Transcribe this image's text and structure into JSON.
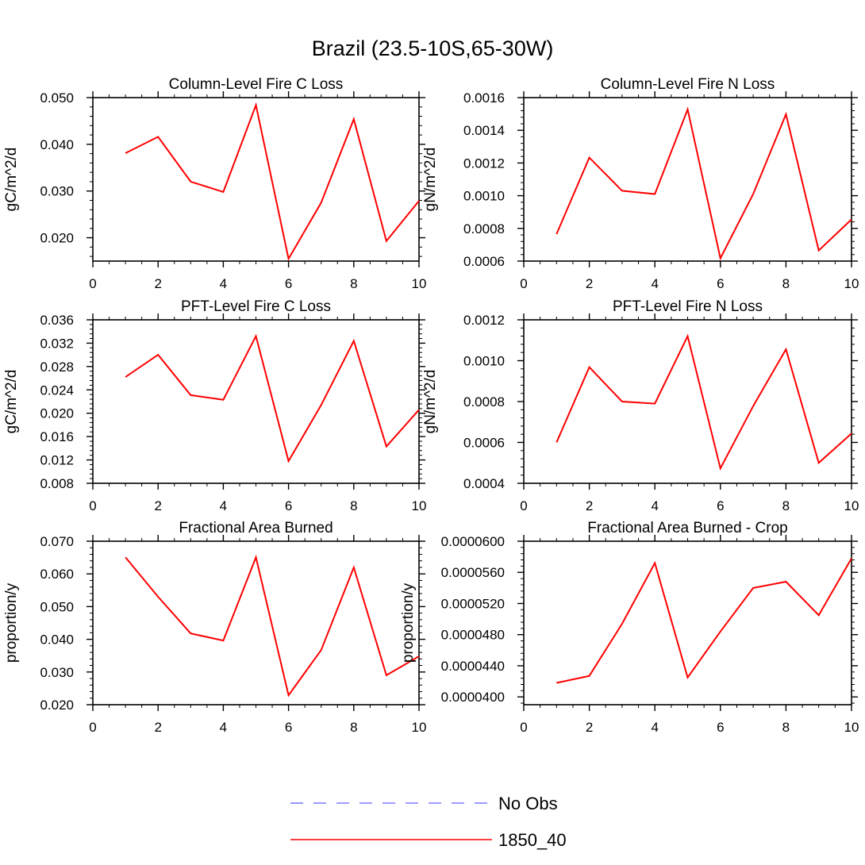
{
  "figure": {
    "title": "Brazil (23.5-10S,65-30W)",
    "line_color": "#ff0000",
    "obs_color": "#7b7bff"
  },
  "legend": {
    "items": [
      {
        "label": "No Obs",
        "style": "dashed",
        "color": "#7b7bff"
      },
      {
        "label": "1850_40",
        "style": "solid",
        "color": "#ff0000"
      }
    ]
  },
  "chart_data": [
    {
      "type": "line",
      "title": "Column-Level Fire C Loss",
      "ylabel": "gC/m^2/d",
      "xlim": [
        0,
        10
      ],
      "ylim": [
        0.015,
        0.05
      ],
      "xticks": [
        "0",
        "2",
        "4",
        "6",
        "8",
        "10"
      ],
      "yticks": [
        {
          "v": 0.02,
          "label": "0.020"
        },
        {
          "v": 0.03,
          "label": "0.030"
        },
        {
          "v": 0.04,
          "label": "0.040"
        },
        {
          "v": 0.05,
          "label": "0.050"
        }
      ],
      "series": [
        {
          "name": "1850_40",
          "x": [
            1,
            2,
            3,
            4,
            5,
            6,
            7,
            8,
            9,
            10
          ],
          "values": [
            0.0381,
            0.0416,
            0.032,
            0.0298,
            0.0484,
            0.0155,
            0.0275,
            0.0454,
            0.0193,
            0.0279
          ]
        }
      ]
    },
    {
      "type": "line",
      "title": "Column-Level Fire N Loss",
      "ylabel": "gN/m^2/d",
      "xlim": [
        0,
        10
      ],
      "ylim": [
        0.0006,
        0.0016
      ],
      "xticks": [
        "0",
        "2",
        "4",
        "6",
        "8",
        "10"
      ],
      "yticks": [
        {
          "v": 0.0006,
          "label": "0.0006"
        },
        {
          "v": 0.0008,
          "label": "0.0008"
        },
        {
          "v": 0.001,
          "label": "0.0010"
        },
        {
          "v": 0.0012,
          "label": "0.0012"
        },
        {
          "v": 0.0014,
          "label": "0.0014"
        },
        {
          "v": 0.0016,
          "label": "0.0016"
        }
      ],
      "series": [
        {
          "name": "1850_40",
          "x": [
            1,
            2,
            3,
            4,
            5,
            6,
            7,
            8,
            9,
            10
          ],
          "values": [
            0.000765,
            0.001233,
            0.00103,
            0.00101,
            0.001528,
            0.000617,
            0.00101,
            0.001498,
            0.000665,
            0.000855
          ]
        }
      ]
    },
    {
      "type": "line",
      "title": "PFT-Level Fire C Loss",
      "ylabel": "gC/m^2/d",
      "xlim": [
        0,
        10
      ],
      "ylim": [
        0.008,
        0.036
      ],
      "xticks": [
        "0",
        "2",
        "4",
        "6",
        "8",
        "10"
      ],
      "yticks": [
        {
          "v": 0.008,
          "label": "0.008"
        },
        {
          "v": 0.012,
          "label": "0.012"
        },
        {
          "v": 0.016,
          "label": "0.016"
        },
        {
          "v": 0.02,
          "label": "0.020"
        },
        {
          "v": 0.024,
          "label": "0.024"
        },
        {
          "v": 0.028,
          "label": "0.028"
        },
        {
          "v": 0.032,
          "label": "0.032"
        },
        {
          "v": 0.036,
          "label": "0.036"
        }
      ],
      "series": [
        {
          "name": "1850_40",
          "x": [
            1,
            2,
            3,
            4,
            5,
            6,
            7,
            8,
            9,
            10
          ],
          "values": [
            0.0262,
            0.03,
            0.0231,
            0.0223,
            0.0332,
            0.0118,
            0.0214,
            0.0324,
            0.0143,
            0.0206
          ]
        }
      ]
    },
    {
      "type": "line",
      "title": "PFT-Level Fire N Loss",
      "ylabel": "gN/m^2/d",
      "xlim": [
        0,
        10
      ],
      "ylim": [
        0.0004,
        0.0012
      ],
      "xticks": [
        "0",
        "2",
        "4",
        "6",
        "8",
        "10"
      ],
      "yticks": [
        {
          "v": 0.0004,
          "label": "0.0004"
        },
        {
          "v": 0.0006,
          "label": "0.0006"
        },
        {
          "v": 0.0008,
          "label": "0.0008"
        },
        {
          "v": 0.001,
          "label": "0.0010"
        },
        {
          "v": 0.0012,
          "label": "0.0012"
        }
      ],
      "series": [
        {
          "name": "1850_40",
          "x": [
            1,
            2,
            3,
            4,
            5,
            6,
            7,
            8,
            9,
            10
          ],
          "values": [
            0.0006,
            0.000968,
            0.0008,
            0.00079,
            0.00112,
            0.000473,
            0.000778,
            0.001056,
            0.0005,
            0.000644
          ]
        }
      ]
    },
    {
      "type": "line",
      "title": "Fractional Area Burned",
      "ylabel": "proportion/y",
      "xlim": [
        0,
        10
      ],
      "ylim": [
        0.02,
        0.07
      ],
      "xticks": [
        "0",
        "2",
        "4",
        "6",
        "8",
        "10"
      ],
      "yticks": [
        {
          "v": 0.02,
          "label": "0.020"
        },
        {
          "v": 0.03,
          "label": "0.030"
        },
        {
          "v": 0.04,
          "label": "0.040"
        },
        {
          "v": 0.05,
          "label": "0.050"
        },
        {
          "v": 0.06,
          "label": "0.060"
        },
        {
          "v": 0.07,
          "label": "0.070"
        }
      ],
      "series": [
        {
          "name": "1850_40",
          "x": [
            1,
            2,
            3,
            4,
            5,
            6,
            7,
            8,
            9,
            10
          ],
          "values": [
            0.0651,
            0.053,
            0.0418,
            0.0396,
            0.0651,
            0.0229,
            0.0367,
            0.062,
            0.029,
            0.0348
          ]
        }
      ]
    },
    {
      "type": "line",
      "title": "Fractional Area Burned - Crop",
      "ylabel": "proportion/y",
      "xlim": [
        0,
        10
      ],
      "ylim": [
        3.9e-05,
        6e-05
      ],
      "xticks": [
        "0",
        "2",
        "4",
        "6",
        "8",
        "10"
      ],
      "yticks": [
        {
          "v": 4e-05,
          "label": "0.0000400"
        },
        {
          "v": 4.4e-05,
          "label": "0.0000440"
        },
        {
          "v": 4.8e-05,
          "label": "0.0000480"
        },
        {
          "v": 5.2e-05,
          "label": "0.0000520"
        },
        {
          "v": 5.6e-05,
          "label": "0.0000560"
        },
        {
          "v": 6e-05,
          "label": "0.0000600"
        }
      ],
      "series": [
        {
          "name": "1850_40",
          "x": [
            1,
            2,
            3,
            4,
            5,
            6,
            7,
            8,
            9,
            10
          ],
          "values": [
            4.18e-05,
            4.27e-05,
            4.94e-05,
            5.72e-05,
            4.25e-05,
            4.84e-05,
            5.4e-05,
            5.48e-05,
            5.05e-05,
            5.78e-05
          ]
        }
      ]
    }
  ]
}
